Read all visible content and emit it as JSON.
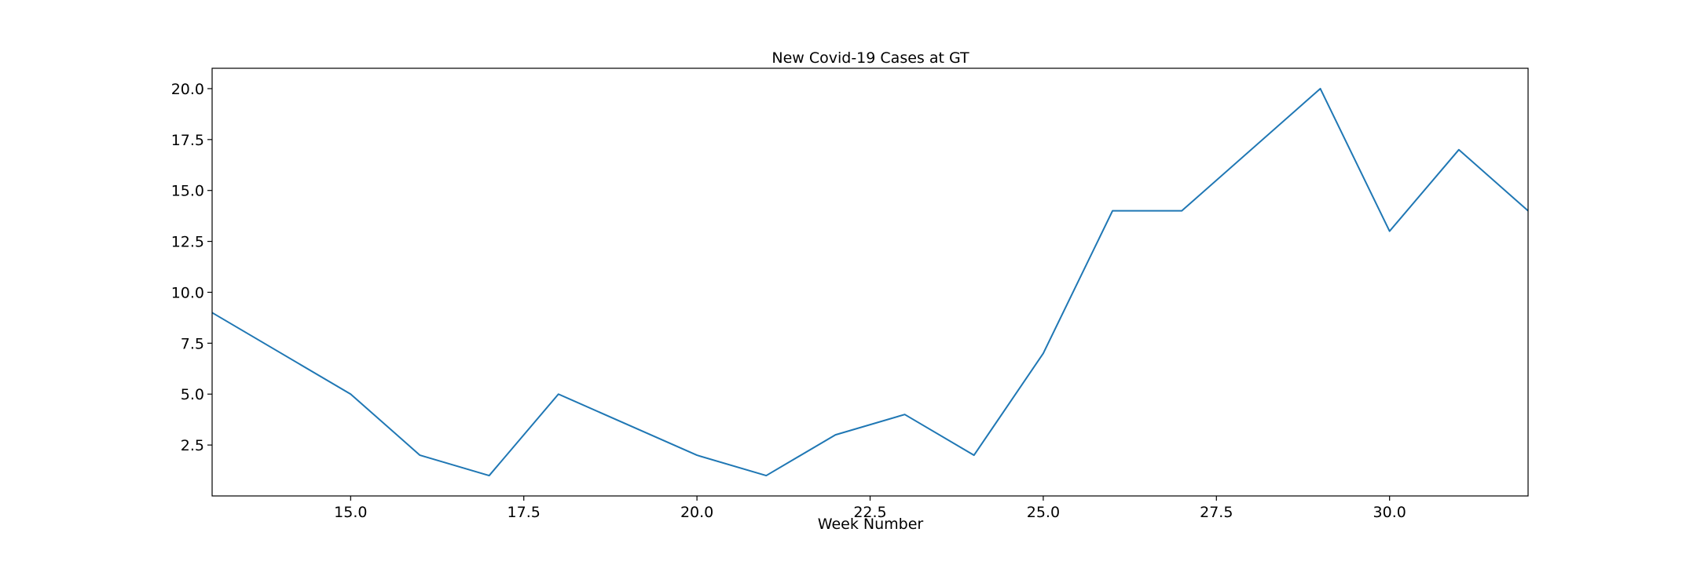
{
  "chart_data": {
    "type": "line",
    "title": "New Covid-19 Cases at GT",
    "xlabel": "Week Number",
    "ylabel": "",
    "xlim": [
      13,
      32
    ],
    "ylim": [
      0,
      21
    ],
    "x_ticks": [
      15.0,
      17.5,
      20.0,
      22.5,
      25.0,
      27.5,
      30.0
    ],
    "x_tick_labels": [
      "15.0",
      "17.5",
      "20.0",
      "22.5",
      "25.0",
      "27.5",
      "30.0"
    ],
    "y_ticks": [
      2.5,
      5.0,
      7.5,
      10.0,
      12.5,
      15.0,
      17.5,
      20.0
    ],
    "y_tick_labels": [
      "2.5",
      "5.0",
      "7.5",
      "10.0",
      "12.5",
      "15.0",
      "17.5",
      "20.0"
    ],
    "grid": false,
    "series": [
      {
        "color": "#1f77b4",
        "x": [
          13,
          15,
          16,
          17,
          18,
          20,
          21,
          22,
          23,
          24,
          25,
          26,
          27,
          29,
          30,
          31,
          32
        ],
        "y": [
          9,
          5,
          2,
          1,
          5,
          2,
          1,
          3,
          4,
          2,
          7,
          14,
          14,
          20,
          13,
          17,
          14
        ]
      }
    ]
  }
}
